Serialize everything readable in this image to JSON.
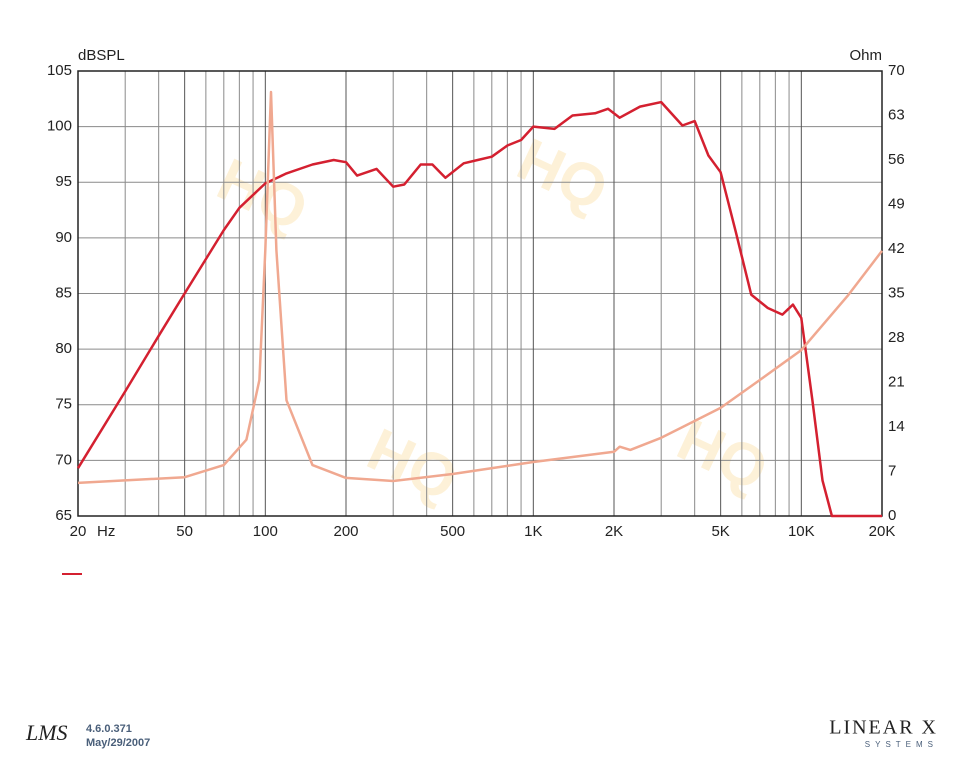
{
  "chart_data": {
    "type": "line",
    "y_label": "dBSPL",
    "y2_label": "Ohm",
    "x_label": "Hz",
    "log_x": true,
    "grid": true,
    "xlim": [
      20,
      20000
    ],
    "xticks": [
      20,
      50,
      100,
      200,
      500,
      {
        "value": 1000,
        "label": "1K"
      },
      {
        "value": 2000,
        "label": "2K"
      },
      {
        "value": 5000,
        "label": "5K"
      },
      {
        "value": 10000,
        "label": "10K"
      },
      {
        "value": 20000,
        "label": "20K"
      }
    ],
    "xminorticks": [
      30,
      40,
      60,
      70,
      80,
      90,
      300,
      400,
      600,
      700,
      800,
      900,
      3000,
      4000,
      6000,
      7000,
      8000,
      9000
    ],
    "ylim": [
      65,
      105
    ],
    "yticks": [
      65,
      70,
      75,
      80,
      85,
      90,
      95,
      100,
      105
    ],
    "y2lim": [
      0,
      70
    ],
    "y2ticks": [
      0,
      7,
      14,
      21,
      28,
      35,
      42,
      49,
      56,
      63,
      70
    ],
    "series": [
      {
        "color": "#d42030",
        "x": [
          20,
          30,
          40,
          50,
          70,
          80,
          100,
          120,
          150,
          180,
          200,
          220,
          260,
          300,
          330,
          380,
          420,
          470,
          550,
          620,
          700,
          800,
          900,
          1000,
          1200,
          1400,
          1700,
          1900,
          2100,
          2500,
          3000,
          3600,
          4000,
          4500,
          5000,
          5700,
          6500,
          7500,
          8500,
          9300,
          10000,
          11000,
          12000,
          13000,
          20000
        ],
        "values": [
          69.3,
          76.2,
          81.2,
          85.0,
          90.7,
          92.7,
          94.9,
          95.8,
          96.6,
          97.0,
          96.8,
          95.6,
          96.2,
          94.6,
          94.8,
          96.6,
          96.6,
          95.4,
          96.7,
          97.0,
          97.3,
          98.3,
          98.8,
          100.0,
          99.8,
          101.0,
          101.2,
          101.6,
          100.8,
          101.8,
          102.2,
          100.1,
          100.5,
          97.4,
          95.9,
          90.5,
          84.9,
          83.7,
          83.1,
          84.0,
          82.8,
          75.4,
          68.2,
          65,
          65
        ]
      },
      {
        "color": "#f0a890",
        "axis": "y2",
        "x": [
          20,
          50,
          70,
          85,
          95,
          100,
          105,
          110,
          120,
          150,
          200,
          300,
          500,
          1000,
          2000,
          2100,
          2300,
          3000,
          5000,
          7000,
          10000,
          15000,
          20000
        ],
        "values": [
          5.2,
          6.1,
          8.0,
          12,
          21.4,
          41.8,
          66.7,
          41.8,
          18.2,
          8,
          6.0,
          5.5,
          6.6,
          8.5,
          10.1,
          10.9,
          10.4,
          12.3,
          17,
          21.4,
          26.1,
          34.8,
          41.7
        ]
      }
    ]
  },
  "footer": {
    "logo": "LMS",
    "version": "4.6.0.371",
    "date": "May/29/2007",
    "brand": "LINEAR X",
    "brand_sub": "SYSTEMS"
  }
}
